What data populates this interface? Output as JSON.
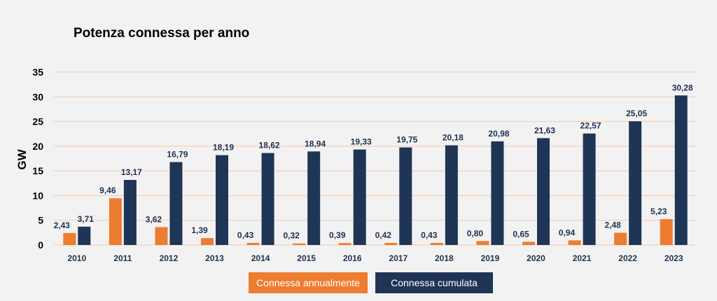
{
  "chart_data": {
    "type": "bar",
    "title": "Potenza connessa per anno",
    "ylabel": "GW",
    "xlabel": "",
    "ylim": [
      0,
      35
    ],
    "yticks": [
      0,
      5,
      10,
      15,
      20,
      25,
      30,
      35
    ],
    "grid": true,
    "legend_position": "bottom",
    "categories": [
      "2010",
      "2011",
      "2012",
      "2013",
      "2014",
      "2015",
      "2016",
      "2017",
      "2018",
      "2019",
      "2020",
      "2021",
      "2022",
      "2023"
    ],
    "series": [
      {
        "name": "Connessa annualmente",
        "color": "#ed7d31",
        "values": [
          2.43,
          9.46,
          3.62,
          1.39,
          0.43,
          0.32,
          0.39,
          0.42,
          0.43,
          0.8,
          0.65,
          0.94,
          2.48,
          5.23
        ],
        "labels": [
          "2,43",
          "9,46",
          "3,62",
          "1,39",
          "0,43",
          "0,32",
          "0,39",
          "0,42",
          "0,43",
          "0,80",
          "0,65",
          "0,94",
          "2,48",
          "5,23"
        ]
      },
      {
        "name": "Connessa cumulata",
        "color": "#1f3556",
        "values": [
          3.71,
          13.17,
          16.79,
          18.19,
          18.62,
          18.94,
          19.33,
          19.75,
          20.18,
          20.98,
          21.63,
          22.57,
          25.05,
          30.28
        ],
        "labels": [
          "3,71",
          "13,17",
          "16,79",
          "18,19",
          "18,62",
          "18,94",
          "19,33",
          "19,75",
          "20,18",
          "20,98",
          "21,63",
          "22,57",
          "25,05",
          "30,28"
        ]
      }
    ],
    "grid_color": "#f6c9a8"
  }
}
